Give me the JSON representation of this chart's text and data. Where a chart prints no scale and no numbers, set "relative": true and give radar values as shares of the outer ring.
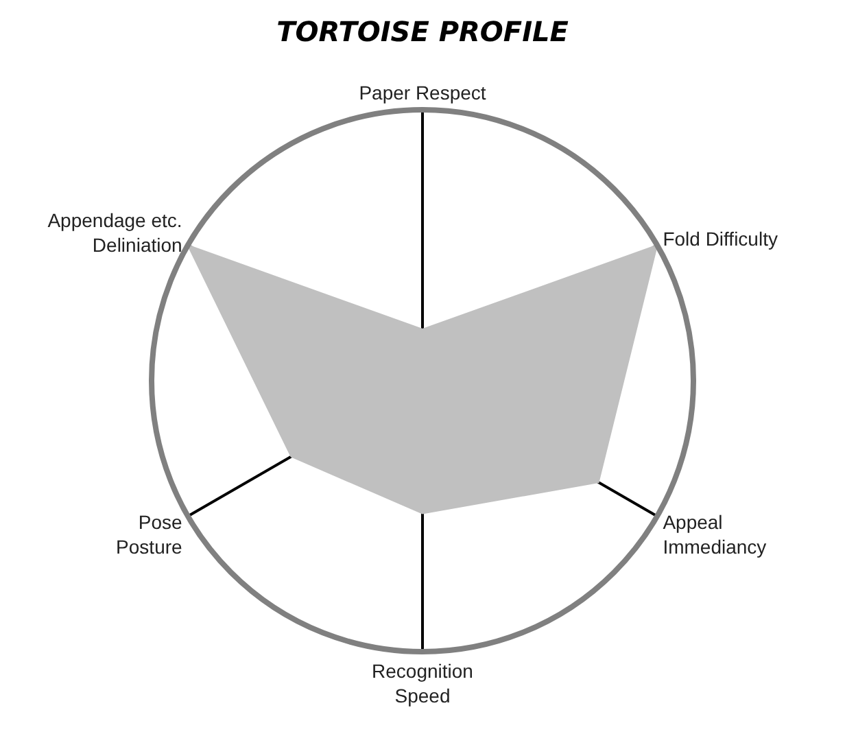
{
  "chart_data": {
    "type": "radar",
    "title": "TORTOISE PROFILE",
    "relative": true,
    "categories": [
      "Paper Respect",
      "Fold Difficulty",
      "Appeal\nImmediancy",
      "Recognition\nSpeed",
      "Pose\nPosture",
      "Appendage etc.\nDeliniation"
    ],
    "series": [
      {
        "color": "#c0c0c0",
        "values": [
          0.19,
          1.0,
          0.75,
          0.49,
          0.56,
          1.0
        ]
      }
    ]
  }
}
